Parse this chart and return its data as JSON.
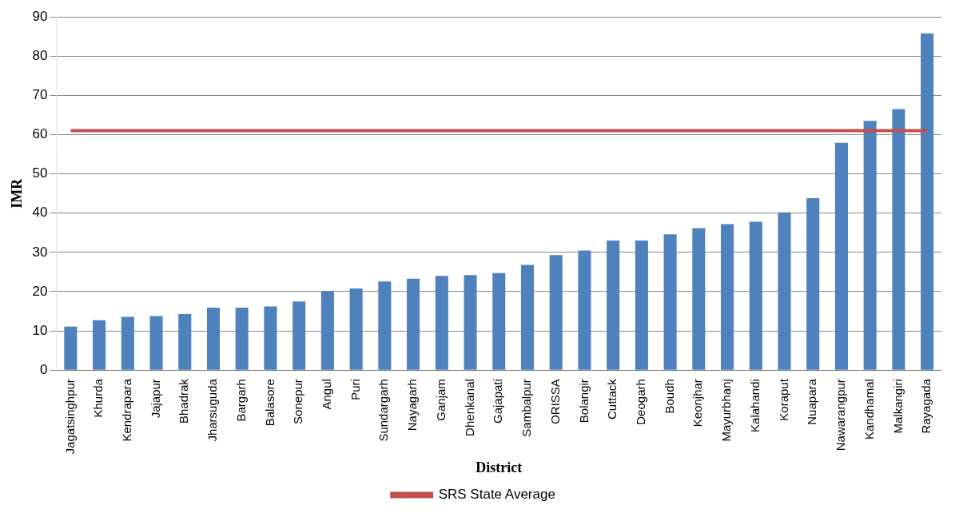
{
  "chart_data": {
    "type": "bar",
    "xlabel": "District",
    "ylabel": "IMR",
    "categories": [
      "Jagatsinghpur",
      "Khurda",
      "Kendrapara",
      "Jajapur",
      "Bhadrak",
      "Jharsuguda",
      "Bargarh",
      "Balasore",
      "Sonepur",
      "Angul",
      "Puri",
      "Sundargarh",
      "Nayagarh",
      "Ganjam",
      "Dhenkanal",
      "Gajapati",
      "Sambalpur",
      "ORISSA",
      "Bolangir",
      "Cuttack",
      "Deogarh",
      "Boudh",
      "Keonjhar",
      "Mayurbhanj",
      "Kalahandi",
      "Koraput",
      "Nuapara",
      "Nawarangpur",
      "Kandhamal",
      "Malkangiri",
      "Rayagada"
    ],
    "series": [
      {
        "color": "#4f81bd",
        "values": [
          11.1,
          12.7,
          13.6,
          13.8,
          14.3,
          15.9,
          15.9,
          16.2,
          17.5,
          20.1,
          20.8,
          22.6,
          23.3,
          24.0,
          24.2,
          24.7,
          26.8,
          29.3,
          30.5,
          33.0,
          33.0,
          34.6,
          36.2,
          37.2,
          37.8,
          40.2,
          43.8,
          57.9,
          63.5,
          66.5,
          85.8
        ]
      },
      {
        "type": "line",
        "name": "SRS State Average",
        "color": "#c0504d",
        "values": [
          61,
          61,
          61,
          61,
          61,
          61,
          61,
          61,
          61,
          61,
          61,
          61,
          61,
          61,
          61,
          61,
          61,
          61,
          61,
          61,
          61,
          61,
          61,
          61,
          61,
          61,
          61,
          61,
          61,
          61,
          61
        ]
      }
    ],
    "ylim": [
      0,
      90
    ],
    "yticks": [
      0,
      10,
      20,
      30,
      40,
      50,
      60,
      70,
      80,
      90
    ],
    "grid": "y",
    "legend": "bottom"
  }
}
